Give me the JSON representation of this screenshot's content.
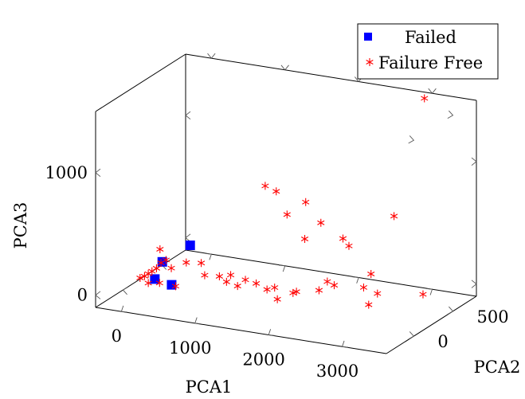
{
  "chart_data": {
    "type": "scatter",
    "projection": "3d",
    "xlabel": "PCA1",
    "ylabel": "PCA2",
    "zlabel": "PCA3",
    "x_ticks": [
      "0",
      "1000",
      "2000",
      "3000"
    ],
    "y_ticks": [
      "0",
      "500"
    ],
    "z_ticks": [
      "0",
      "1000"
    ],
    "x_ticks_values": [
      0,
      1000,
      2000,
      3000
    ],
    "y_ticks_values": [
      0,
      500
    ],
    "z_ticks_values": [
      0,
      1000
    ],
    "xlim": [
      -350,
      3600
    ],
    "ylim": [
      -350,
      800
    ],
    "zlim": [
      -100,
      1500
    ],
    "legend_position": "top-right",
    "series": [
      {
        "name": "Failed",
        "marker": "square",
        "color": "#0000ff",
        "points": [
          {
            "x": 40,
            "y": 40,
            "z": 10
          },
          {
            "x": 300,
            "y": 10,
            "z": 0
          },
          {
            "x": 120,
            "y": 60,
            "z": 150
          },
          {
            "x": 350,
            "y": 200,
            "z": 250
          }
        ]
      },
      {
        "name": "Failure Free",
        "marker": "star",
        "color": "#ff0000",
        "points": [
          {
            "x": -150,
            "y": 30,
            "z": 5
          },
          {
            "x": -100,
            "y": 40,
            "z": 20
          },
          {
            "x": -60,
            "y": 50,
            "z": 40
          },
          {
            "x": -20,
            "y": 60,
            "z": 60
          },
          {
            "x": 20,
            "y": 80,
            "z": 80
          },
          {
            "x": 60,
            "y": 100,
            "z": 120
          },
          {
            "x": 110,
            "y": 40,
            "z": 260
          },
          {
            "x": 150,
            "y": 80,
            "z": 160
          },
          {
            "x": 100,
            "y": -100,
            "z": 40
          },
          {
            "x": 200,
            "y": -50,
            "z": 30
          },
          {
            "x": 450,
            "y": -80,
            "z": 40
          },
          {
            "x": 200,
            "y": 100,
            "z": 90
          },
          {
            "x": 350,
            "y": 150,
            "z": 130
          },
          {
            "x": 500,
            "y": 200,
            "z": 120
          },
          {
            "x": 600,
            "y": 150,
            "z": 50
          },
          {
            "x": 800,
            "y": 150,
            "z": 60
          },
          {
            "x": 950,
            "y": 100,
            "z": 50
          },
          {
            "x": 900,
            "y": 200,
            "z": 60
          },
          {
            "x": 1100,
            "y": 100,
            "z": 30
          },
          {
            "x": 1100,
            "y": 200,
            "z": 40
          },
          {
            "x": 1300,
            "y": 150,
            "z": 50
          },
          {
            "x": 1500,
            "y": 100,
            "z": 40
          },
          {
            "x": 1550,
            "y": 150,
            "z": 40
          },
          {
            "x": 1800,
            "y": 150,
            "z": 20
          },
          {
            "x": 1800,
            "y": -50,
            "z": 50
          },
          {
            "x": 1900,
            "y": 100,
            "z": 60
          },
          {
            "x": 2100,
            "y": 200,
            "z": 50
          },
          {
            "x": 2200,
            "y": 300,
            "z": 60
          },
          {
            "x": 2000,
            "y": 400,
            "z": 30
          },
          {
            "x": 1400,
            "y": 450,
            "z": 500
          },
          {
            "x": 1200,
            "y": 500,
            "z": 650
          },
          {
            "x": 1050,
            "y": 500,
            "z": 680
          },
          {
            "x": 1600,
            "y": 500,
            "z": 600
          },
          {
            "x": 1700,
            "y": 600,
            "z": 400
          },
          {
            "x": 2000,
            "y": 600,
            "z": 300
          },
          {
            "x": 2700,
            "y": 300,
            "z": 200
          },
          {
            "x": 3000,
            "y": 100,
            "z": 150
          },
          {
            "x": 2800,
            "y": 500,
            "z": 600
          },
          {
            "x": 3000,
            "y": 700,
            "z": 1500
          },
          {
            "x": 3200,
            "y": -200,
            "z": 200
          },
          {
            "x": 3300,
            "y": 400,
            "z": 50
          },
          {
            "x": 2600,
            "y": 300,
            "z": 80
          },
          {
            "x": 1800,
            "y": 300,
            "z": 400
          },
          {
            "x": 2400,
            "y": 300,
            "z": 400
          }
        ]
      }
    ]
  }
}
